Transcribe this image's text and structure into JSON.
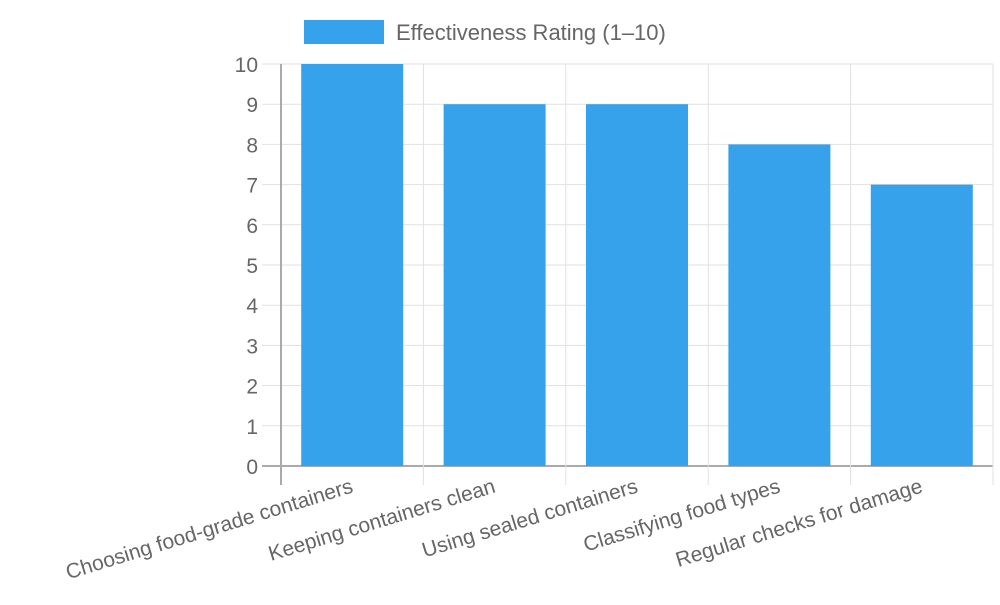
{
  "chart_data": {
    "type": "bar",
    "categories": [
      "Choosing food-grade containers",
      "Keeping containers clean",
      "Using sealed containers",
      "Classifying food types",
      "Regular checks for damage"
    ],
    "series": [
      {
        "name": "Effectiveness Rating (1–10)",
        "values": [
          10,
          9,
          9,
          8,
          7
        ],
        "color": "#36A2EB"
      }
    ],
    "ylim": [
      0,
      10
    ],
    "yticks": [
      "0",
      "1",
      "2",
      "3",
      "4",
      "5",
      "6",
      "7",
      "8",
      "9",
      "10"
    ],
    "grid": true,
    "legend": "top"
  }
}
